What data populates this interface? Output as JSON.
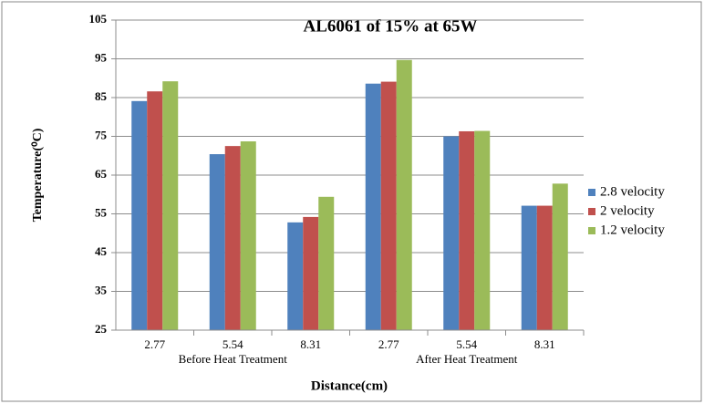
{
  "chart_data": {
    "type": "bar",
    "title": "AL6061 of 15%  at 65W",
    "x_label": "Distance(cm)",
    "y_label": "Temperature(⁰C)",
    "categories": [
      "2.77",
      "5.54",
      "8.31",
      "2.77",
      "5.54",
      "8.31"
    ],
    "groups": [
      "Before Heat Treatment",
      "After Heat Treatment"
    ],
    "series": [
      {
        "name": "2.8 velocity",
        "color": "#4f81bd",
        "values": [
          84.1,
          70.4,
          52.8,
          88.6,
          75.0,
          57.1
        ]
      },
      {
        "name": "2 velocity",
        "color": "#c0504d",
        "values": [
          86.6,
          72.5,
          54.2,
          89.1,
          76.3,
          57.1
        ]
      },
      {
        "name": "1.2 velocity",
        "color": "#9bbb59",
        "values": [
          89.2,
          73.7,
          59.4,
          94.7,
          76.4,
          62.8
        ]
      }
    ],
    "ylim": [
      25,
      105
    ],
    "yticks": [
      25,
      35,
      45,
      55,
      65,
      75,
      85,
      95,
      105
    ],
    "grid": true,
    "legend": "right"
  }
}
